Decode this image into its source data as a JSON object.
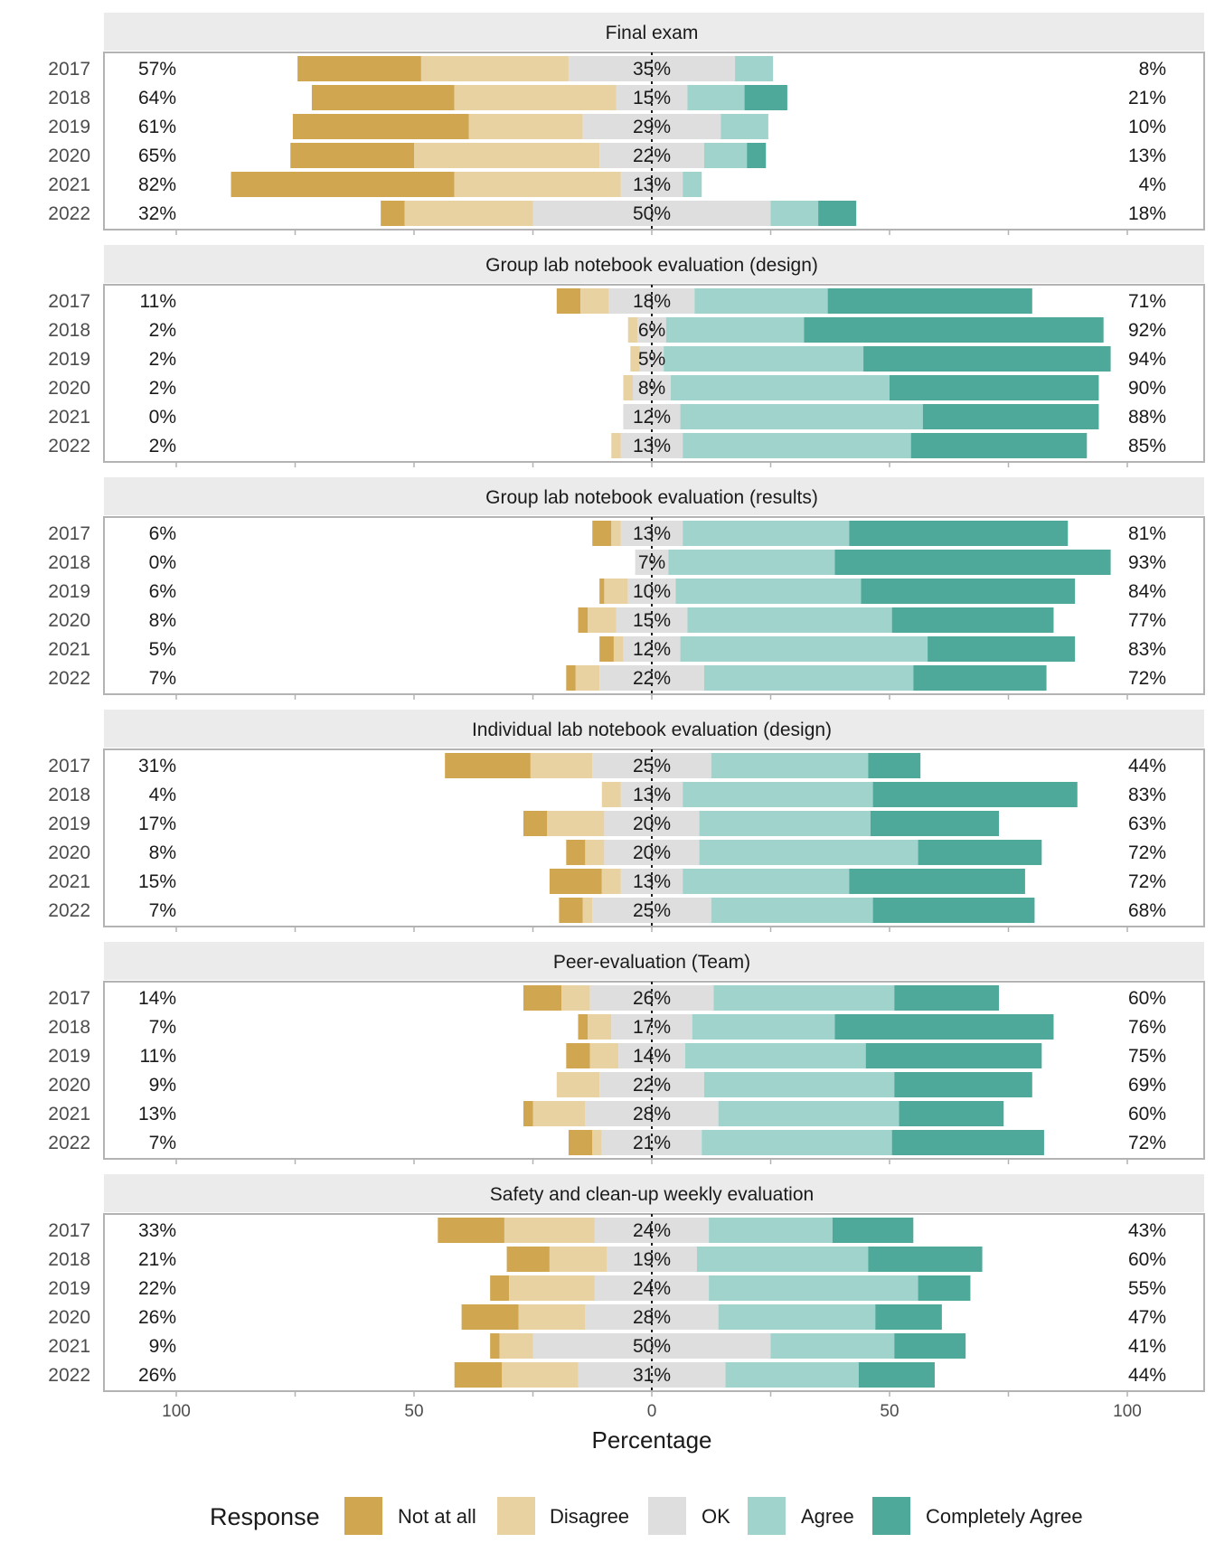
{
  "chart_data": {
    "type": "bar",
    "subtype": "diverging-stacked",
    "xlabel": "Percentage",
    "ylabel": "",
    "x_ticks": [
      "100",
      "50",
      "0",
      "50",
      "100"
    ],
    "xlim": [
      -115,
      115
    ],
    "legend": {
      "title": "Response",
      "position": "bottom",
      "items": [
        "Not at all",
        "Disagree",
        "OK",
        "Agree",
        "Completely Agree"
      ]
    },
    "colors": {
      "Not at all": "#d1a650",
      "Disagree": "#e8d2a2",
      "OK": "#dedede",
      "Agree": "#9fd3cb",
      "Completely Agree": "#4ea99b"
    },
    "panels": [
      {
        "title": "Final exam",
        "rows": [
          {
            "year": "2017",
            "left_label": "57%",
            "center_label": "35%",
            "right_label": "8%",
            "values": [
              26,
              31,
              35,
              8,
              0
            ]
          },
          {
            "year": "2018",
            "left_label": "64%",
            "center_label": "15%",
            "right_label": "21%",
            "values": [
              30,
              34,
              15,
              12,
              9
            ]
          },
          {
            "year": "2019",
            "left_label": "61%",
            "center_label": "29%",
            "right_label": "10%",
            "values": [
              37,
              24,
              29,
              10,
              0
            ]
          },
          {
            "year": "2020",
            "left_label": "65%",
            "center_label": "22%",
            "right_label": "13%",
            "values": [
              26,
              39,
              22,
              9,
              4
            ]
          },
          {
            "year": "2021",
            "left_label": "82%",
            "center_label": "13%",
            "right_label": "4%",
            "values": [
              47,
              35,
              13,
              4,
              0
            ]
          },
          {
            "year": "2022",
            "left_label": "32%",
            "center_label": "50%",
            "right_label": "18%",
            "values": [
              5,
              27,
              50,
              10,
              8
            ]
          }
        ]
      },
      {
        "title": "Group lab notebook evaluation (design)",
        "rows": [
          {
            "year": "2017",
            "left_label": "11%",
            "center_label": "18%",
            "right_label": "71%",
            "values": [
              5,
              6,
              18,
              28,
              43
            ]
          },
          {
            "year": "2018",
            "left_label": "2%",
            "center_label": "6%",
            "right_label": "92%",
            "values": [
              0,
              2,
              6,
              29,
              63
            ]
          },
          {
            "year": "2019",
            "left_label": "2%",
            "center_label": "5%",
            "right_label": "94%",
            "values": [
              0,
              2,
              5,
              42,
              52
            ]
          },
          {
            "year": "2020",
            "left_label": "2%",
            "center_label": "8%",
            "right_label": "90%",
            "values": [
              0,
              2,
              8,
              46,
              44
            ]
          },
          {
            "year": "2021",
            "left_label": "0%",
            "center_label": "12%",
            "right_label": "88%",
            "values": [
              0,
              0,
              12,
              51,
              37
            ]
          },
          {
            "year": "2022",
            "left_label": "2%",
            "center_label": "13%",
            "right_label": "85%",
            "values": [
              0,
              2,
              13,
              48,
              37
            ]
          }
        ]
      },
      {
        "title": "Group lab notebook evaluation (results)",
        "rows": [
          {
            "year": "2017",
            "left_label": "6%",
            "center_label": "13%",
            "right_label": "81%",
            "values": [
              4,
              2,
              13,
              35,
              46
            ]
          },
          {
            "year": "2018",
            "left_label": "0%",
            "center_label": "7%",
            "right_label": "93%",
            "values": [
              0,
              0,
              7,
              35,
              58
            ]
          },
          {
            "year": "2019",
            "left_label": "6%",
            "center_label": "10%",
            "right_label": "84%",
            "values": [
              1,
              5,
              10,
              39,
              45
            ]
          },
          {
            "year": "2020",
            "left_label": "8%",
            "center_label": "15%",
            "right_label": "77%",
            "values": [
              2,
              6,
              15,
              43,
              34
            ]
          },
          {
            "year": "2021",
            "left_label": "5%",
            "center_label": "12%",
            "right_label": "83%",
            "values": [
              3,
              2,
              12,
              52,
              31
            ]
          },
          {
            "year": "2022",
            "left_label": "7%",
            "center_label": "22%",
            "right_label": "72%",
            "values": [
              2,
              5,
              22,
              44,
              28
            ]
          }
        ]
      },
      {
        "title": "Individual lab notebook evaluation (design)",
        "rows": [
          {
            "year": "2017",
            "left_label": "31%",
            "center_label": "25%",
            "right_label": "44%",
            "values": [
              18,
              13,
              25,
              33,
              11
            ]
          },
          {
            "year": "2018",
            "left_label": "4%",
            "center_label": "13%",
            "right_label": "83%",
            "values": [
              0,
              4,
              13,
              40,
              43
            ]
          },
          {
            "year": "2019",
            "left_label": "17%",
            "center_label": "20%",
            "right_label": "63%",
            "values": [
              5,
              12,
              20,
              36,
              27
            ]
          },
          {
            "year": "2020",
            "left_label": "8%",
            "center_label": "20%",
            "right_label": "72%",
            "values": [
              4,
              4,
              20,
              46,
              26
            ]
          },
          {
            "year": "2021",
            "left_label": "15%",
            "center_label": "13%",
            "right_label": "72%",
            "values": [
              11,
              4,
              13,
              35,
              37
            ]
          },
          {
            "year": "2022",
            "left_label": "7%",
            "center_label": "25%",
            "right_label": "68%",
            "values": [
              5,
              2,
              25,
              34,
              34
            ]
          }
        ]
      },
      {
        "title": "Peer-evaluation (Team)",
        "rows": [
          {
            "year": "2017",
            "left_label": "14%",
            "center_label": "26%",
            "right_label": "60%",
            "values": [
              8,
              6,
              26,
              38,
              22
            ]
          },
          {
            "year": "2018",
            "left_label": "7%",
            "center_label": "17%",
            "right_label": "76%",
            "values": [
              2,
              5,
              17,
              30,
              46
            ]
          },
          {
            "year": "2019",
            "left_label": "11%",
            "center_label": "14%",
            "right_label": "75%",
            "values": [
              5,
              6,
              14,
              38,
              37
            ]
          },
          {
            "year": "2020",
            "left_label": "9%",
            "center_label": "22%",
            "right_label": "69%",
            "values": [
              0,
              9,
              22,
              40,
              29
            ]
          },
          {
            "year": "2021",
            "left_label": "13%",
            "center_label": "28%",
            "right_label": "60%",
            "values": [
              2,
              11,
              28,
              38,
              22
            ]
          },
          {
            "year": "2022",
            "left_label": "7%",
            "center_label": "21%",
            "right_label": "72%",
            "values": [
              5,
              2,
              21,
              40,
              32
            ]
          }
        ]
      },
      {
        "title": "Safety and clean-up weekly evaluation",
        "rows": [
          {
            "year": "2017",
            "left_label": "33%",
            "center_label": "24%",
            "right_label": "43%",
            "values": [
              14,
              19,
              24,
              26,
              17
            ]
          },
          {
            "year": "2018",
            "left_label": "21%",
            "center_label": "19%",
            "right_label": "60%",
            "values": [
              9,
              12,
              19,
              36,
              24
            ]
          },
          {
            "year": "2019",
            "left_label": "22%",
            "center_label": "24%",
            "right_label": "55%",
            "values": [
              4,
              18,
              24,
              44,
              11
            ]
          },
          {
            "year": "2020",
            "left_label": "26%",
            "center_label": "28%",
            "right_label": "47%",
            "values": [
              12,
              14,
              28,
              33,
              14
            ]
          },
          {
            "year": "2021",
            "left_label": "9%",
            "center_label": "50%",
            "right_label": "41%",
            "values": [
              2,
              7,
              50,
              26,
              15
            ]
          },
          {
            "year": "2022",
            "left_label": "26%",
            "center_label": "31%",
            "right_label": "44%",
            "values": [
              10,
              16,
              31,
              28,
              16
            ]
          }
        ]
      }
    ]
  }
}
